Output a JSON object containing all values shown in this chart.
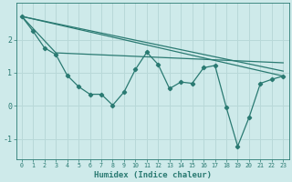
{
  "xlabel": "Humidex (Indice chaleur)",
  "bg_color": "#ceeaea",
  "line_color": "#2a7a72",
  "grid_color": "#b8d8d8",
  "xlim": [
    -0.5,
    23.5
  ],
  "ylim": [
    -1.6,
    3.1
  ],
  "yticks": [
    -1,
    0,
    1,
    2
  ],
  "xticks": [
    0,
    1,
    2,
    3,
    4,
    5,
    6,
    7,
    8,
    9,
    10,
    11,
    12,
    13,
    14,
    15,
    16,
    17,
    18,
    19,
    20,
    21,
    22,
    23
  ],
  "trend1_x": [
    0,
    23
  ],
  "trend1_y": [
    2.7,
    0.9
  ],
  "trend2_x": [
    0,
    23
  ],
  "trend2_y": [
    2.7,
    1.05
  ],
  "trend3_x": [
    0,
    3,
    23
  ],
  "trend3_y": [
    2.7,
    1.6,
    1.3
  ],
  "main_x": [
    0,
    1,
    2,
    3,
    4,
    5,
    6,
    7,
    8,
    9,
    10,
    11,
    12,
    13,
    14,
    15,
    16,
    17,
    18,
    19,
    20,
    21,
    22,
    23
  ],
  "main_y": [
    2.7,
    2.25,
    1.75,
    1.55,
    0.92,
    0.58,
    0.35,
    0.35,
    0.02,
    0.42,
    1.1,
    1.62,
    1.25,
    0.52,
    0.72,
    0.68,
    1.15,
    1.22,
    -0.05,
    -1.22,
    -0.35,
    0.68,
    0.8,
    0.9
  ]
}
